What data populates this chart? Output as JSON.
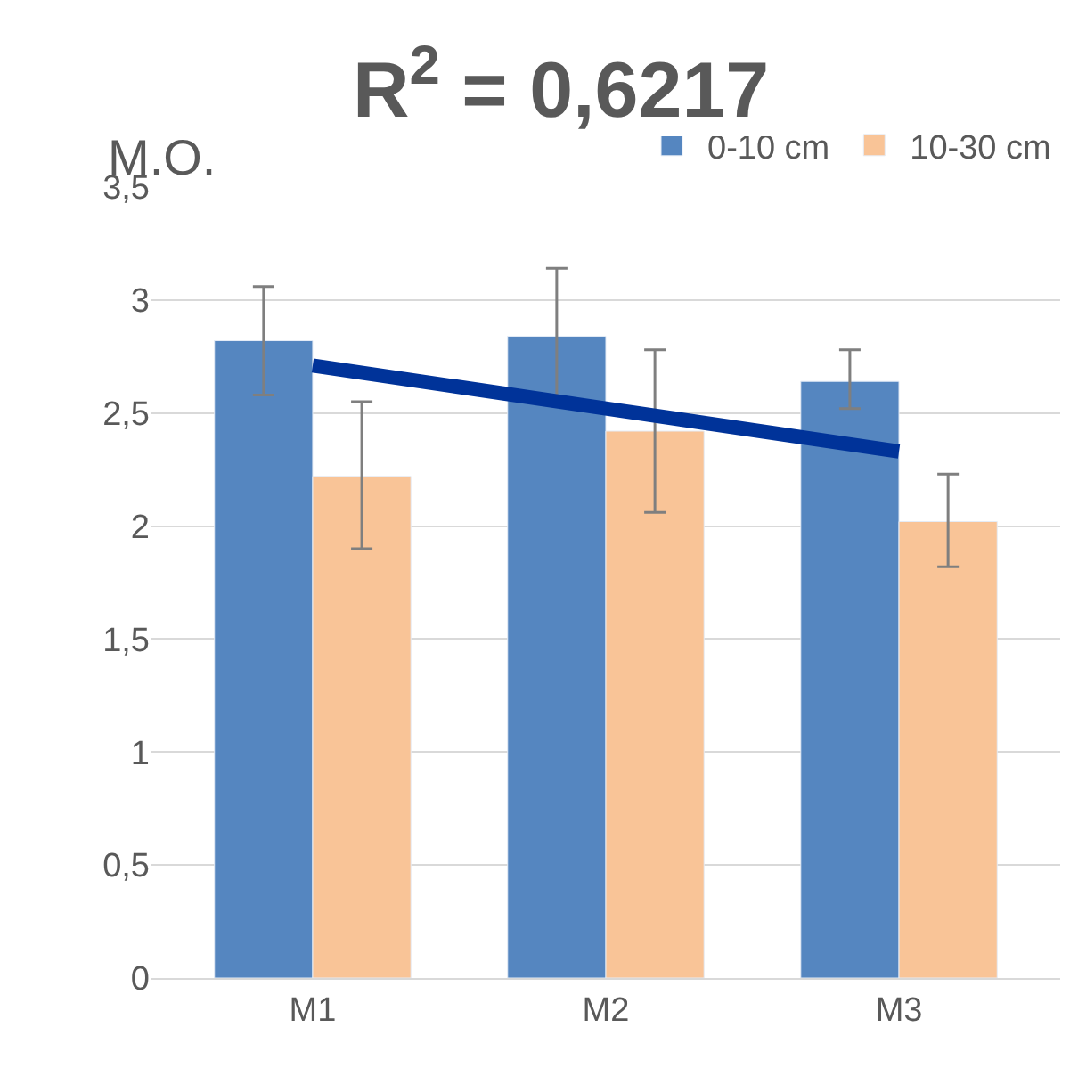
{
  "chart_data": {
    "type": "bar",
    "title": "M.O.",
    "annotations": [
      "R$^{2}$ = 0,6217"
    ],
    "categories": [
      "M1",
      "M2",
      "M3"
    ],
    "series": [
      {
        "name": "0-10 cm",
        "color": "#5586c0",
        "values": [
          2.82,
          2.84,
          2.64
        ],
        "errors": [
          [
            2.58,
            3.06
          ],
          [
            2.54,
            3.14
          ],
          [
            2.52,
            2.78
          ]
        ]
      },
      {
        "name": "10-30 cm",
        "color": "#f9c497",
        "values": [
          2.22,
          2.42,
          2.02
        ],
        "errors": [
          [
            1.9,
            2.55
          ],
          [
            2.06,
            2.78
          ],
          [
            1.82,
            2.23
          ]
        ]
      },
      {
        "type": "line",
        "color": "#003399",
        "values": [
          2.71,
          2.52,
          2.33
        ]
      }
    ],
    "ylim": [
      0,
      3.5
    ],
    "yticks": [
      {
        "value": 0,
        "label": "0"
      },
      {
        "value": 0.5,
        "label": "0,5"
      },
      {
        "value": 1,
        "label": "1"
      },
      {
        "value": 1.5,
        "label": "1,5"
      },
      {
        "value": 2,
        "label": "2"
      },
      {
        "value": 2.5,
        "label": "2,5"
      },
      {
        "value": 3,
        "label": "3"
      },
      {
        "value": 3.5,
        "label": "3,5"
      }
    ],
    "grid": "y",
    "legend": "top right"
  }
}
